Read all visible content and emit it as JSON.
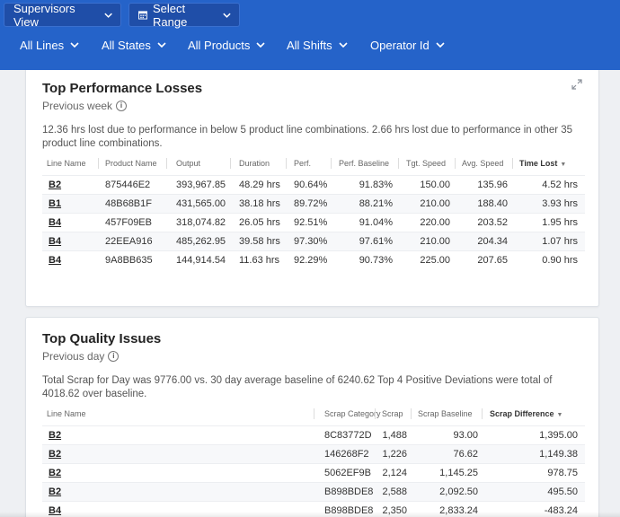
{
  "header": {
    "view_button": "Supervisors View",
    "range_button": "Select Range",
    "filters": [
      "All Lines",
      "All States",
      "All Products",
      "All Shifts",
      "Operator Id"
    ]
  },
  "performance": {
    "title": "Top Performance Losses",
    "subtitle": "Previous week",
    "description": "12.36 hrs lost due to performance in below 5 product line combinations. 2.66 hrs lost due to performance in other 35 product line combinations.",
    "columns": [
      "Line Name",
      "Product Name",
      "Output",
      "Duration",
      "Perf.",
      "Perf. Baseline",
      "Tgt. Speed",
      "Avg. Speed",
      "Time Lost"
    ],
    "rows": [
      [
        "B2",
        "875446E2",
        "393,967.85",
        "48.29 hrs",
        "90.64%",
        "91.83%",
        "150.00",
        "135.96",
        "4.52 hrs"
      ],
      [
        "B1",
        "48B68B1F",
        "431,565.00",
        "38.18 hrs",
        "89.72%",
        "88.21%",
        "210.00",
        "188.40",
        "3.93 hrs"
      ],
      [
        "B4",
        "457F09EB",
        "318,074.82",
        "26.05 hrs",
        "92.51%",
        "91.04%",
        "220.00",
        "203.52",
        "1.95 hrs"
      ],
      [
        "B4",
        "22EEA916",
        "485,262.95",
        "39.58 hrs",
        "97.30%",
        "97.61%",
        "210.00",
        "204.34",
        "1.07 hrs"
      ],
      [
        "B4",
        "9A8BB635",
        "144,914.54",
        "11.63 hrs",
        "92.29%",
        "90.73%",
        "225.00",
        "207.65",
        "0.90 hrs"
      ]
    ]
  },
  "quality": {
    "title": "Top Quality Issues",
    "subtitle": "Previous day",
    "description": "Total Scrap for Day was 9776.00 vs. 30 day average baseline of 6240.62 Top 4 Positive Deviations were total of 4018.62 over baseline.",
    "columns": [
      "Line Name",
      "Scrap Category",
      "Scrap",
      "Scrap Baseline",
      "Scrap Difference"
    ],
    "rows": [
      [
        "B2",
        "8C83772D",
        "1,488",
        "93.00",
        "1,395.00"
      ],
      [
        "B2",
        "146268F2",
        "1,226",
        "76.62",
        "1,149.38"
      ],
      [
        "B2",
        "5062EF9B",
        "2,124",
        "1,145.25",
        "978.75"
      ],
      [
        "B2",
        "B898BDE8",
        "2,588",
        "2,092.50",
        "495.50"
      ],
      [
        "B4",
        "B898BDE8",
        "2,350",
        "2,833.24",
        "-483.24"
      ]
    ]
  },
  "colors": {
    "header_bg": "#2563c9",
    "button_bg": "#1f4ea8"
  },
  "icons": [
    "chevron-down-icon",
    "calendar-icon",
    "info-icon",
    "expand-icon",
    "sort-down-icon"
  ]
}
